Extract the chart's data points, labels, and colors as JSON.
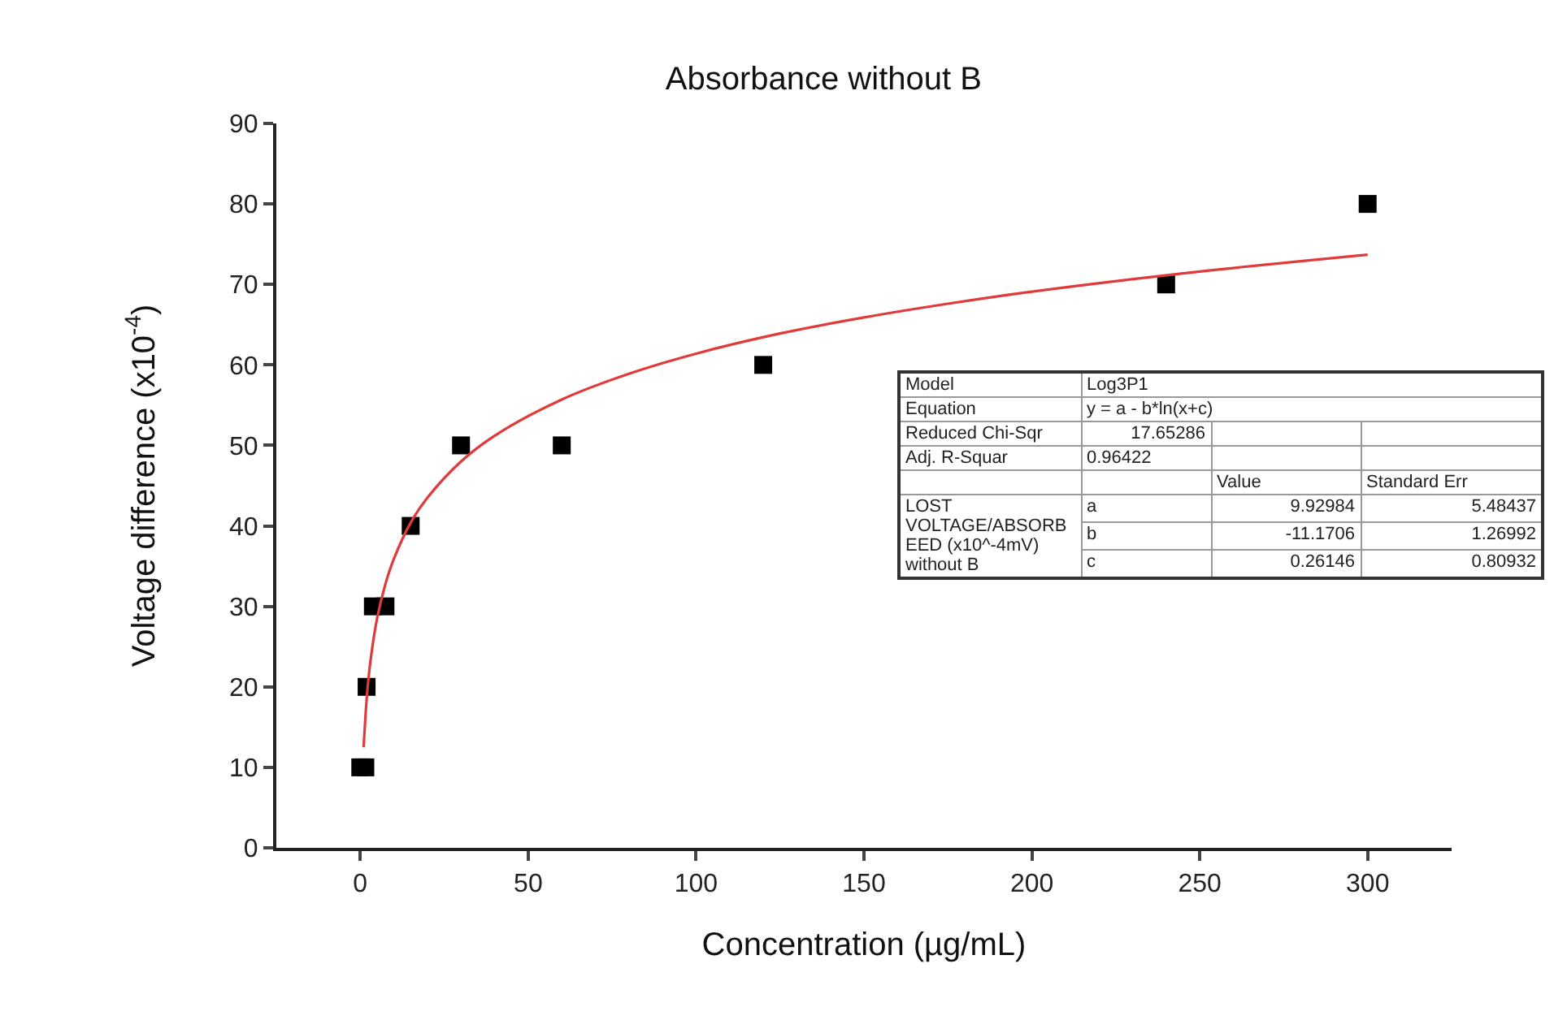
{
  "chart_data": {
    "type": "scatter",
    "title": "Absorbance without B",
    "xlabel": "Concentration (µg/mL)",
    "ylabel": "Voltage difference (x10$^{-4}$)",
    "xlim": [
      -25,
      325
    ],
    "xticks": [
      0,
      50,
      100,
      150,
      200,
      250,
      300
    ],
    "ylim": [
      0,
      90
    ],
    "yticks": [
      0,
      10,
      20,
      30,
      40,
      50,
      60,
      70,
      80,
      90
    ],
    "grid": false,
    "series": [
      {
        "marker": "square",
        "color": "#000000",
        "x": [
          0,
          1.5,
          1.88,
          3.75,
          7.5,
          15,
          30,
          60,
          120,
          240,
          300
        ],
        "values": [
          10,
          10,
          20,
          30,
          30,
          40,
          50,
          50,
          60,
          70,
          80
        ]
      },
      {
        "type": "line",
        "marker": "none",
        "line_style": "solid",
        "color": "#e03a3a",
        "x": [
          1,
          2,
          3,
          5,
          7.5,
          10,
          15,
          20,
          30,
          40,
          60,
          80,
          100,
          125,
          150,
          175,
          200,
          250,
          300
        ],
        "values": [
          12.5,
          19.0,
          23.1,
          28.5,
          32.8,
          35.9,
          40.4,
          43.5,
          48.0,
          51.2,
          55.7,
          58.9,
          61.4,
          63.9,
          65.9,
          67.6,
          69.1,
          71.6,
          73.7
        ]
      }
    ],
    "annotations": [
      "Model",
      "Log3P1",
      "Equation",
      "y = a - b*ln(x+c)",
      "Reduced Chi-Sqr",
      "17.65286",
      "Adj. R-Squar",
      "0.96422",
      "Value",
      "Standard Err",
      "LOST VOLTAGE/ABSORBEED (x10^-4mV) without B",
      "a",
      "9.92984",
      "5.48437",
      "b",
      "-11.1706",
      "1.26992",
      "c",
      "0.26146",
      "0.80932"
    ]
  }
}
